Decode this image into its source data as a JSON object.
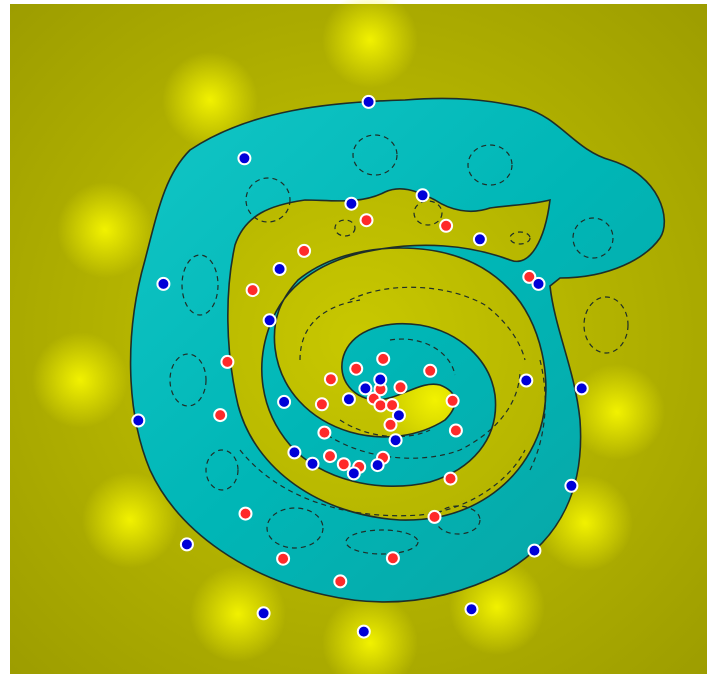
{
  "chart_data": {
    "type": "scatter",
    "title": "",
    "xlabel": "",
    "ylabel": "",
    "xlim": [
      -10,
      10
    ],
    "ylim": [
      -10,
      10
    ],
    "grid": false,
    "legend": "none",
    "description_style": "decision-boundary",
    "colors": {
      "positive_region": "#00c8c8",
      "positive_region_glow": "#40eaea",
      "negative_region": "#a8a800",
      "negative_region_glow": "#f5f500",
      "boundary": "#1e2e28",
      "margin": "#1e2e28",
      "class_a_point": "#ff2a2a",
      "class_b_point": "#0000d8",
      "point_outline": "#ffffff"
    },
    "series": [
      {
        "class": "a",
        "color": "#ff2a2a",
        "points": [
          [
            0.14,
            -0.69
          ],
          [
            0.39,
            -0.34
          ],
          [
            1.13,
            -0.27
          ],
          [
            0.39,
            -0.94
          ],
          [
            0.82,
            -0.93
          ],
          [
            0.76,
            -1.66
          ],
          [
            0.48,
            -2.88
          ],
          [
            -0.4,
            -3.22
          ],
          [
            -0.97,
            -3.12
          ],
          [
            -1.48,
            -2.82
          ],
          [
            -1.69,
            -1.95
          ],
          [
            -1.78,
            -0.9
          ],
          [
            -1.45,
            0.03
          ],
          [
            -0.51,
            0.42
          ],
          [
            0.49,
            0.78
          ],
          [
            2.23,
            0.34
          ],
          [
            3.06,
            -0.77
          ],
          [
            3.18,
            -1.87
          ],
          [
            2.98,
            -3.65
          ],
          [
            2.39,
            -5.07
          ],
          [
            0.85,
            -6.6
          ],
          [
            -1.1,
            -7.46
          ],
          [
            -3.22,
            -6.62
          ],
          [
            -4.61,
            -4.95
          ],
          [
            -5.55,
            -1.3
          ],
          [
            -5.28,
            0.67
          ],
          [
            -4.35,
            3.33
          ],
          [
            -2.44,
            4.78
          ],
          [
            -0.13,
            5.92
          ],
          [
            2.82,
            5.71
          ],
          [
            5.9,
            3.82
          ]
        ]
      },
      {
        "class": "b",
        "color": "#0000d8",
        "points": [
          [
            -0.78,
            -0.71
          ],
          [
            -0.17,
            -0.31
          ],
          [
            0.38,
            0.02
          ],
          [
            1.07,
            -1.31
          ],
          [
            0.95,
            -2.23
          ],
          [
            0.28,
            -3.15
          ],
          [
            -0.6,
            -3.46
          ],
          [
            -2.13,
            -3.1
          ],
          [
            -2.8,
            -2.68
          ],
          [
            -3.18,
            -0.81
          ],
          [
            -3.72,
            2.21
          ],
          [
            -3.35,
            4.11
          ],
          [
            -0.69,
            6.53
          ],
          [
            1.95,
            6.84
          ],
          [
            4.07,
            5.21
          ],
          [
            6.24,
            3.56
          ],
          [
            7.84,
            -0.31
          ],
          [
            7.46,
            -3.92
          ],
          [
            6.09,
            -6.32
          ],
          [
            3.76,
            -8.49
          ],
          [
            -0.23,
            -9.32
          ],
          [
            -3.94,
            -8.64
          ],
          [
            -6.78,
            -6.09
          ],
          [
            -8.58,
            -1.5
          ],
          [
            -7.65,
            3.56
          ],
          [
            -4.65,
            8.21
          ],
          [
            -0.05,
            10.3
          ],
          [
            5.79,
            -0.02
          ]
        ]
      }
    ]
  }
}
